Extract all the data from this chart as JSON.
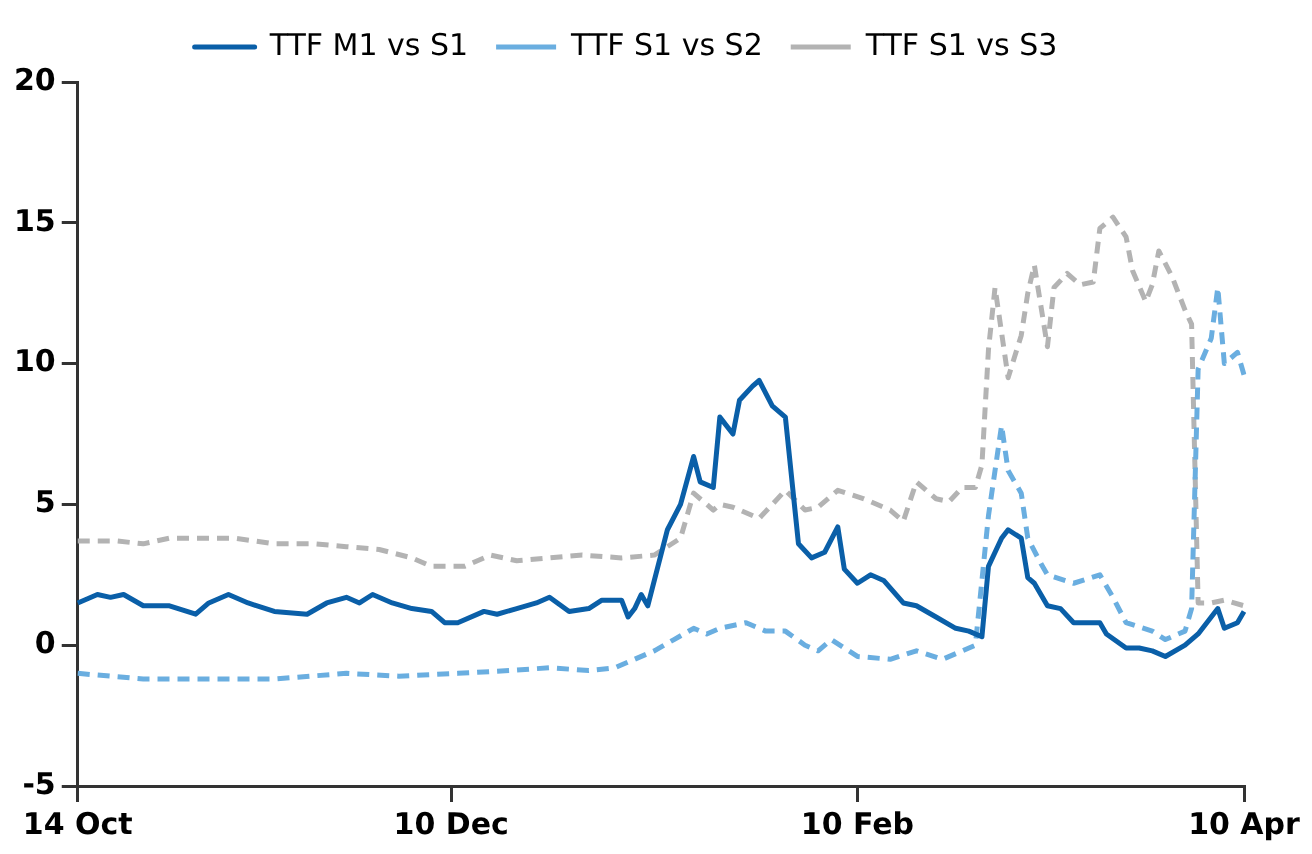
{
  "chart_data": {
    "type": "line",
    "legend": "top",
    "grid": false,
    "ylim": [
      -5,
      20
    ],
    "yticks": [
      -5,
      0,
      5,
      10,
      15,
      20
    ],
    "categories": [
      "14 Oct",
      null,
      null,
      null,
      null,
      null,
      null,
      null,
      null,
      null,
      null,
      null,
      null,
      null,
      null,
      null,
      null,
      null,
      null,
      null,
      null,
      null,
      null,
      null,
      null,
      null,
      null,
      null,
      null,
      null,
      null,
      null,
      null,
      null,
      null,
      null,
      null,
      null,
      null,
      null,
      null,
      null,
      null,
      null,
      null,
      null,
      null,
      null,
      null,
      null,
      null,
      null,
      null,
      null,
      null,
      null,
      null,
      "10 Dec",
      null,
      null,
      null,
      null,
      null,
      null,
      null,
      null,
      null,
      null,
      null,
      null,
      null,
      null,
      null,
      null,
      null,
      null,
      null,
      null,
      null,
      null,
      null,
      null,
      null,
      null,
      null,
      null,
      null,
      null,
      null,
      null,
      null,
      null,
      null,
      null,
      null,
      null,
      null,
      null,
      null,
      null,
      null,
      null,
      null,
      null,
      null,
      null,
      null,
      null,
      null,
      null,
      null,
      null,
      null,
      null,
      null,
      null,
      null,
      null,
      null,
      "10 Feb",
      null,
      null,
      null,
      null,
      null,
      null,
      null,
      null,
      null,
      null,
      null,
      null,
      null,
      null,
      null,
      null,
      null,
      null,
      null,
      null,
      null,
      null,
      null,
      null,
      null,
      null,
      null,
      null,
      null,
      null,
      null,
      null,
      null,
      null,
      null,
      null,
      null,
      null,
      null,
      null,
      null,
      null,
      null,
      null,
      null,
      null,
      null,
      null,
      null,
      null,
      null,
      null,
      null,
      null,
      null,
      null,
      null,
      null,
      "10 Apr"
    ],
    "series": [
      {
        "name": "TTF M1 vs S1",
        "color": "#0a5fa8",
        "line_style": "solid",
        "values": [
          1.5,
          null,
          null,
          1.8,
          null,
          1.7,
          null,
          1.8,
          null,
          null,
          1.4,
          null,
          null,
          null,
          1.4,
          null,
          null,
          null,
          1.1,
          null,
          1.5,
          null,
          null,
          1.8,
          null,
          null,
          1.5,
          null,
          null,
          null,
          1.2,
          null,
          null,
          null,
          null,
          1.1,
          null,
          null,
          1.5,
          null,
          null,
          1.7,
          null,
          1.5,
          null,
          1.8,
          null,
          null,
          1.5,
          null,
          null,
          1.3,
          null,
          null,
          1.2,
          null,
          0.8,
          null,
          0.8,
          null,
          null,
          null,
          1.2,
          null,
          1.1,
          null,
          null,
          1.3,
          null,
          null,
          1.5,
          null,
          1.7,
          null,
          null,
          1.2,
          null,
          null,
          1.3,
          null,
          1.6,
          null,
          null,
          1.6,
          1.0,
          1.3,
          1.8,
          1.4,
          2.3,
          null,
          4.1,
          null,
          5.0,
          null,
          6.7,
          5.8,
          null,
          5.6,
          8.1,
          null,
          7.5,
          8.7,
          null,
          9.2,
          9.4,
          null,
          8.5,
          null,
          8.1,
          null,
          3.6,
          null,
          3.1,
          null,
          3.3,
          null,
          4.2,
          2.7,
          null,
          2.2,
          null,
          2.5,
          null,
          2.3,
          null,
          null,
          1.5,
          null,
          1.4,
          null,
          null,
          1.0,
          null,
          null,
          0.6,
          null,
          0.5,
          null,
          0.3,
          2.8,
          null,
          3.8,
          4.1,
          null,
          3.8,
          2.4,
          2.2,
          null,
          1.4,
          null,
          1.3,
          null,
          0.8,
          null,
          0.8,
          null,
          0.8,
          0.4,
          null,
          null,
          -0.1,
          null,
          -0.1,
          null,
          -0.2,
          null,
          -0.4,
          null,
          null,
          0,
          null,
          0.4,
          null,
          null,
          1.3,
          0.6,
          null,
          0.8,
          1.2
        ]
      },
      {
        "name": "TTF S1 vs S2",
        "color": "#6aaee0",
        "line_style": "dashed",
        "values": [
          -1.0,
          null,
          null,
          null,
          null,
          null,
          null,
          null,
          null,
          null,
          -1.2,
          null,
          null,
          null,
          null,
          null,
          null,
          null,
          null,
          null,
          -1.2,
          null,
          null,
          null,
          null,
          null,
          null,
          null,
          null,
          null,
          -1.2,
          null,
          null,
          null,
          null,
          null,
          null,
          null,
          null,
          null,
          null,
          -1.0,
          null,
          null,
          null,
          null,
          null,
          null,
          null,
          -1.1,
          null,
          null,
          null,
          null,
          null,
          null,
          null,
          null,
          -1.0,
          null,
          null,
          null,
          null,
          null,
          null,
          null,
          -0.9,
          null,
          null,
          null,
          null,
          null,
          -0.8,
          null,
          null,
          null,
          null,
          null,
          -0.9,
          null,
          null,
          null,
          -0.8,
          null,
          -0.6,
          null,
          null,
          null,
          -0.2,
          null,
          null,
          0.2,
          null,
          null,
          0.6,
          null,
          0.4,
          null,
          0.6,
          null,
          null,
          null,
          0.8,
          null,
          null,
          0.5,
          null,
          null,
          0.5,
          null,
          null,
          0,
          null,
          -0.2,
          null,
          0.2,
          null,
          null,
          null,
          -0.4,
          null,
          null,
          null,
          null,
          -0.5,
          null,
          null,
          null,
          -0.2,
          null,
          null,
          null,
          -0.5,
          null,
          null,
          null,
          null,
          0,
          null,
          4.6,
          null,
          7.8,
          6.2,
          null,
          5.4,
          3.8,
          null,
          2.9,
          2.5,
          null,
          null,
          null,
          2.2,
          null,
          null,
          null,
          2.5,
          null,
          1.7,
          null,
          0.8,
          null,
          null,
          null,
          0.5,
          null,
          0.2,
          null,
          null,
          0.5,
          1.3,
          9.8,
          null,
          10.9,
          12.7,
          10.0,
          null,
          10.4,
          9.6
        ]
      },
      {
        "name": "TTF S1 vs S3",
        "color": "#b3b3b3",
        "line_style": "dashed",
        "values": [
          3.7,
          null,
          null,
          null,
          null,
          null,
          3.7,
          null,
          null,
          null,
          3.6,
          null,
          null,
          null,
          3.8,
          null,
          null,
          null,
          null,
          null,
          null,
          null,
          null,
          null,
          3.8,
          null,
          null,
          null,
          null,
          null,
          3.6,
          null,
          null,
          null,
          null,
          null,
          3.6,
          null,
          null,
          null,
          null,
          3.5,
          null,
          null,
          null,
          null,
          3.4,
          null,
          null,
          null,
          null,
          3.1,
          null,
          null,
          2.8,
          null,
          null,
          null,
          null,
          2.8,
          null,
          null,
          null,
          3.2,
          null,
          null,
          null,
          3.0,
          null,
          null,
          null,
          null,
          3.1,
          null,
          null,
          null,
          null,
          3.2,
          null,
          null,
          null,
          null,
          null,
          3.1,
          null,
          null,
          null,
          null,
          3.2,
          null,
          3.5,
          null,
          3.8,
          null,
          5.4,
          null,
          null,
          4.8,
          5.0,
          null,
          4.9,
          null,
          null,
          null,
          4.5,
          null,
          null,
          null,
          5.5,
          null,
          null,
          4.8,
          null,
          4.9,
          null,
          null,
          5.5,
          null,
          null,
          null,
          5.2,
          null,
          null,
          null,
          4.8,
          null,
          4.4,
          null,
          5.8,
          null,
          null,
          5.2,
          null,
          5.1,
          null,
          5.6,
          null,
          5.6,
          6.4,
          10.5,
          12.7,
          null,
          9.5,
          null,
          11.0,
          12.5,
          13.5,
          null,
          10.6,
          12.7,
          null,
          13.2,
          null,
          12.8,
          null,
          12.9,
          14.8,
          null,
          15.2,
          null,
          14.5,
          13.3,
          null,
          12.2,
          12.8,
          14.0,
          null,
          13.1,
          null,
          11.9,
          11.4,
          1.5,
          null,
          1.5,
          null,
          1.6,
          null,
          null,
          1.4
        ]
      }
    ]
  }
}
